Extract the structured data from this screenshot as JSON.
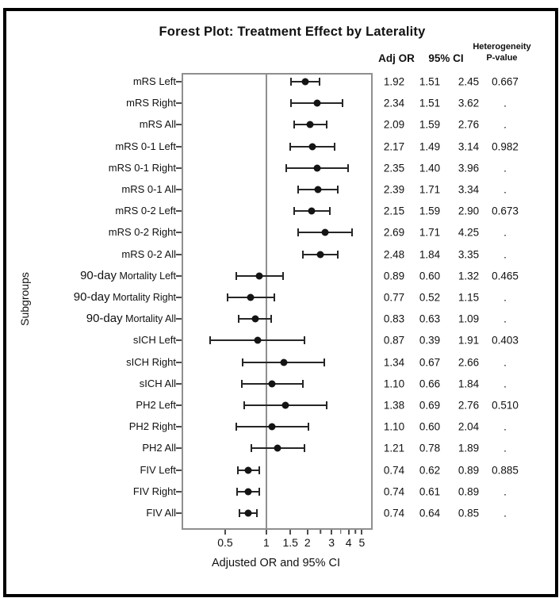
{
  "chart_data": {
    "type": "scatter",
    "subtype": "forest-plot",
    "title": "Forest Plot: Treatment Effect by Laterality",
    "xlabel": "Adjusted OR and 95% CI",
    "ylabel": "Subgroups",
    "x_scale": "log",
    "xlim": [
      0.24,
      6.0
    ],
    "x_ticks_labeled": [
      "0.5",
      "1",
      "1.5",
      "2",
      "3",
      "4",
      "5"
    ],
    "x_ticks_minor": [
      2.5,
      3.5,
      4.5
    ],
    "reference_line_x": 1,
    "grid": false,
    "column_headers": {
      "adj_or": "Adj OR",
      "ci": "95% CI",
      "het_line1": "Heterogeneity",
      "het_line2": "P-value"
    },
    "rows": [
      {
        "label": "mRS Left",
        "adj_or": "1.92",
        "ci_low": "1.51",
        "ci_high": "2.45",
        "het_p": "0.667"
      },
      {
        "label": "mRS Right",
        "adj_or": "2.34",
        "ci_low": "1.51",
        "ci_high": "3.62",
        "het_p": "."
      },
      {
        "label": "mRS All",
        "adj_or": "2.09",
        "ci_low": "1.59",
        "ci_high": "2.76",
        "het_p": "."
      },
      {
        "label": "mRS 0-1 Left",
        "adj_or": "2.17",
        "ci_low": "1.49",
        "ci_high": "3.14",
        "het_p": "0.982"
      },
      {
        "label": "mRS 0-1 Right",
        "adj_or": "2.35",
        "ci_low": "1.40",
        "ci_high": "3.96",
        "het_p": "."
      },
      {
        "label": "mRS 0-1 All",
        "adj_or": "2.39",
        "ci_low": "1.71",
        "ci_high": "3.34",
        "het_p": "."
      },
      {
        "label": "mRS 0-2 Left",
        "adj_or": "2.15",
        "ci_low": "1.59",
        "ci_high": "2.90",
        "het_p": "0.673"
      },
      {
        "label": "mRS 0-2 Right",
        "adj_or": "2.69",
        "ci_low": "1.71",
        "ci_high": "4.25",
        "het_p": "."
      },
      {
        "label": "mRS 0-2 All",
        "adj_or": "2.48",
        "ci_low": "1.84",
        "ci_high": "3.35",
        "het_p": "."
      },
      {
        "label": "90-day Mortality Left",
        "label_large_prefix": "90-day",
        "label_rest": " Mortality Left",
        "adj_or": "0.89",
        "ci_low": "0.60",
        "ci_high": "1.32",
        "het_p": "0.465"
      },
      {
        "label": "90-day Mortality Right",
        "label_large_prefix": "90-day",
        "label_rest": " Mortality Right",
        "adj_or": "0.77",
        "ci_low": "0.52",
        "ci_high": "1.15",
        "het_p": "."
      },
      {
        "label": "90-day Mortality All",
        "label_large_prefix": "90-day",
        "label_rest": " Mortality All",
        "adj_or": "0.83",
        "ci_low": "0.63",
        "ci_high": "1.09",
        "het_p": "."
      },
      {
        "label": "sICH Left",
        "adj_or": "0.87",
        "ci_low": "0.39",
        "ci_high": "1.91",
        "het_p": "0.403"
      },
      {
        "label": "sICH Right",
        "adj_or": "1.34",
        "ci_low": "0.67",
        "ci_high": "2.66",
        "het_p": "."
      },
      {
        "label": "sICH All",
        "adj_or": "1.10",
        "ci_low": "0.66",
        "ci_high": "1.84",
        "het_p": "."
      },
      {
        "label": "PH2 Left",
        "adj_or": "1.38",
        "ci_low": "0.69",
        "ci_high": "2.76",
        "het_p": "0.510"
      },
      {
        "label": "PH2 Right",
        "adj_or": "1.10",
        "ci_low": "0.60",
        "ci_high": "2.04",
        "het_p": "."
      },
      {
        "label": "PH2 All",
        "adj_or": "1.21",
        "ci_low": "0.78",
        "ci_high": "1.89",
        "het_p": "."
      },
      {
        "label": "FIV Left",
        "adj_or": "0.74",
        "ci_low": "0.62",
        "ci_high": "0.89",
        "het_p": "0.885"
      },
      {
        "label": "FIV Right",
        "adj_or": "0.74",
        "ci_low": "0.61",
        "ci_high": "0.89",
        "het_p": "."
      },
      {
        "label": "FIV All",
        "adj_or": "0.74",
        "ci_low": "0.64",
        "ci_high": "0.85",
        "het_p": "."
      }
    ],
    "colors": {
      "text": "#111111",
      "marker": "#141414",
      "ci_line": "#262626",
      "plot_border": "#8f8f8f",
      "reference_line": "#8f8f8f",
      "frame_border": "#000000",
      "background": "#ffffff"
    }
  }
}
